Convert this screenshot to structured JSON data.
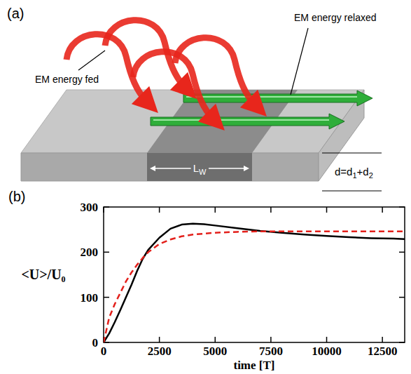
{
  "diagram": {
    "panel_label": "(a)",
    "fed_label": "EM energy fed",
    "relaxed_label": "EM energy relaxed",
    "length_label": {
      "text": "L",
      "sub": "W"
    },
    "thickness_label": [
      {
        "text": "d=d"
      },
      {
        "text": "1",
        "sub": true
      },
      {
        "text": "+d"
      },
      {
        "text": "2",
        "sub": true
      }
    ]
  },
  "chart_data": {
    "type": "line",
    "panel_label": "(b)",
    "xlabel": "time [T]",
    "ylabel": "<U>/U₀",
    "x": [
      0,
      250,
      500,
      750,
      1000,
      1250,
      1500,
      1750,
      2000,
      2500,
      3000,
      3500,
      4000,
      4500,
      5000,
      6000,
      7000,
      8000,
      9000,
      10000,
      11000,
      12000,
      13000,
      13500
    ],
    "series": [
      {
        "color": "#000000",
        "line_style": "solid",
        "values": [
          0,
          20,
          45,
          72,
          100,
          128,
          158,
          185,
          205,
          232,
          252,
          261,
          263,
          262,
          259,
          253,
          247,
          243,
          239,
          236,
          233,
          231,
          230,
          229
        ]
      },
      {
        "color": "#e3201b",
        "line_style": "dashed",
        "values": [
          0,
          55,
          85,
          110,
          135,
          155,
          172,
          187,
          200,
          218,
          228,
          235,
          239,
          241,
          243,
          245,
          246,
          246,
          246,
          246,
          246,
          246,
          246,
          246
        ]
      }
    ],
    "xlim": [
      0,
      13500
    ],
    "ylim": [
      0,
      300
    ],
    "xticks": [
      0,
      2500,
      5000,
      7500,
      10000,
      12500
    ],
    "yticks": [
      0,
      100,
      200,
      300
    ],
    "grid": false
  }
}
